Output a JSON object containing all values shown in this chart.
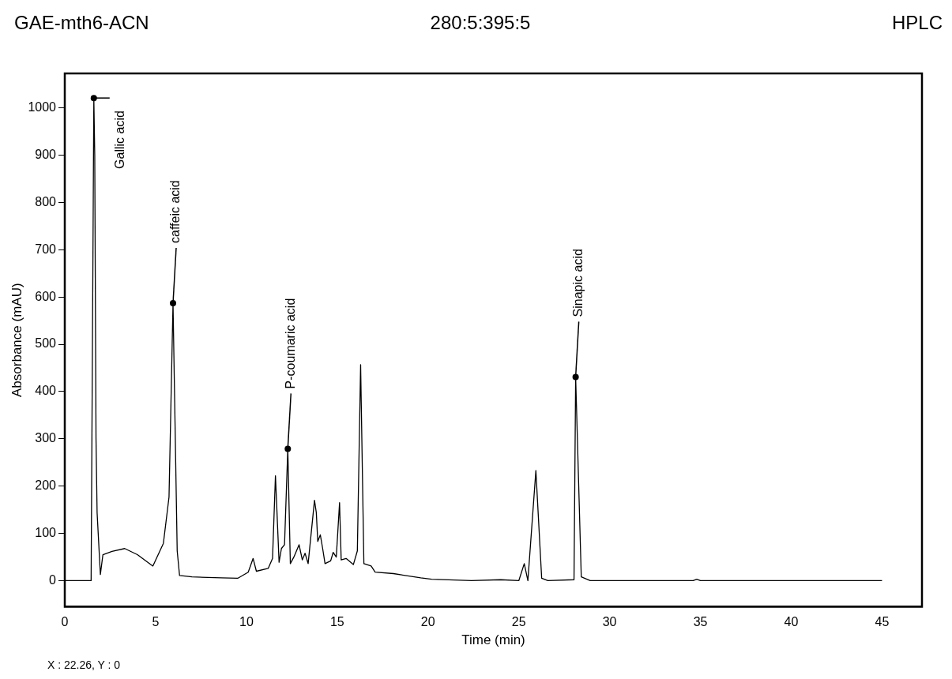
{
  "chart_data": {
    "type": "line",
    "title": "GAE-mth6-ACN",
    "subtitle": "280:5:395:5",
    "xlabel": "Time (min)",
    "ylabel": "Absorbance (mAU)",
    "xlim": [
      0,
      47.2
    ],
    "ylim": [
      -55,
      1073
    ],
    "xticks": [
      0,
      5,
      10,
      15,
      20,
      25,
      30,
      35,
      40,
      45
    ],
    "yticks": [
      0,
      100,
      200,
      300,
      400,
      500,
      600,
      700,
      800,
      900,
      1000
    ],
    "grid": false,
    "legend": false,
    "marker": "none",
    "line_style": "solid",
    "series": [
      {
        "color": "#000000",
        "x": [
          0,
          1.42,
          1.45,
          1.6,
          1.65,
          1.72,
          1.78,
          1.96,
          2.1,
          2.6,
          3.3,
          4.0,
          4.85,
          5.43,
          5.74,
          5.96,
          6.19,
          6.32,
          7.0,
          8.63,
          9.52,
          10.1,
          10.37,
          10.55,
          11.2,
          11.44,
          11.6,
          11.8,
          11.93,
          12.1,
          12.28,
          12.42,
          12.64,
          12.9,
          13.08,
          13.23,
          13.4,
          13.75,
          13.85,
          13.93,
          14.07,
          14.2,
          14.33,
          14.64,
          14.78,
          14.95,
          15.13,
          15.22,
          15.49,
          15.89,
          16.11,
          16.29,
          16.47,
          16.87,
          17.09,
          18.1,
          19.6,
          20.2,
          22.4,
          24.0,
          25.0,
          25.3,
          25.5,
          25.94,
          26.26,
          26.6,
          28.04,
          28.13,
          28.44,
          28.93,
          29.8,
          32.7,
          34.6,
          34.8,
          35.0,
          45
        ],
        "values": [
          0,
          0,
          0,
          1021,
          900,
          300,
          144,
          13,
          55,
          62,
          68,
          55,
          31,
          79,
          177,
          587,
          63,
          11,
          8,
          6,
          5,
          18,
          47,
          20,
          26,
          47,
          222,
          39,
          68,
          76,
          279,
          36,
          52,
          76,
          44,
          58,
          36,
          170,
          144,
          83,
          97,
          68,
          36,
          42,
          60,
          50,
          165,
          44,
          47,
          34,
          63,
          457,
          36,
          31,
          18,
          15,
          6,
          3,
          0,
          2,
          0,
          36,
          0,
          233,
          5,
          0,
          2,
          431,
          8,
          0,
          0,
          0,
          0,
          3,
          0,
          0
        ]
      }
    ],
    "annotations": [
      "HPLC",
      "X : 22.26, Y : 0",
      {
        "text": "Gallic acid",
        "x": 1.6,
        "y": 1021
      },
      {
        "text": "caffeic acid",
        "x": 5.96,
        "y": 587
      },
      {
        "text": "P-coumaric acid",
        "x": 12.28,
        "y": 279
      },
      {
        "text": "Sinapic acid",
        "x": 28.13,
        "y": 431
      }
    ]
  }
}
